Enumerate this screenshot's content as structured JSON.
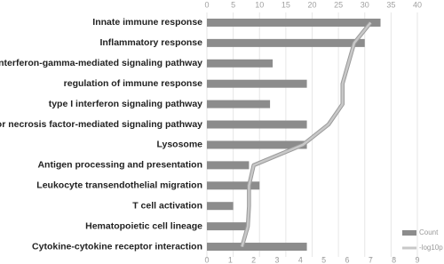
{
  "chart_data": {
    "type": "bar",
    "orientation": "horizontal",
    "categories": [
      "Innate immune response",
      "Inflammatory response",
      "interferon-gamma-mediated signaling pathway",
      "regulation of immune response",
      "type I interferon signaling pathway",
      "tumor necrosis factor-mediated signaling pathway",
      "Lysosome",
      "Antigen processing and presentation",
      "Leukocyte transendothelial migration",
      "T cell activation",
      "Hematopoietic cell lineage",
      "Cytokine-cytokine receptor interaction"
    ],
    "series": [
      {
        "name": "Count",
        "color": "#8c8c8c",
        "values": [
          33,
          30,
          12.5,
          19,
          12,
          19,
          19,
          8,
          10,
          5,
          8,
          19
        ]
      },
      {
        "name": "-log10p",
        "color": "#c8c8c8",
        "type": "line",
        "axis": "x2",
        "values": [
          7.0,
          6.3,
          6.05,
          5.8,
          5.8,
          5.2,
          4.1,
          2.0,
          1.8,
          1.8,
          1.75,
          1.5
        ]
      }
    ],
    "xlim": [
      0,
      40
    ],
    "xticks": [
      0,
      5,
      10,
      15,
      20,
      25,
      30,
      35,
      40
    ],
    "x2lim": [
      0,
      9
    ],
    "x2ticks": [
      0,
      1,
      2,
      3,
      4,
      5,
      6,
      7,
      8,
      9
    ],
    "grid": true,
    "legend": "lower right"
  }
}
